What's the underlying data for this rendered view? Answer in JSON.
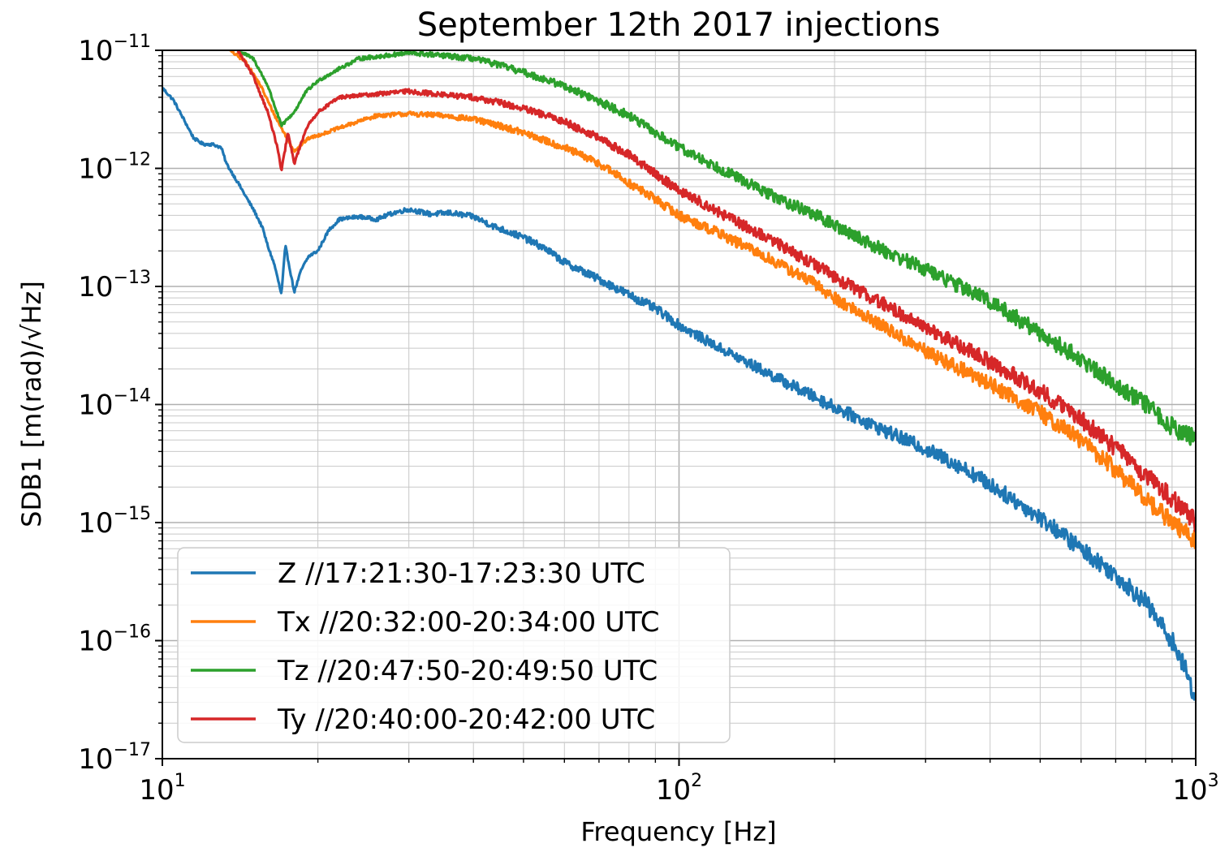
{
  "chart_data": {
    "type": "line",
    "title": "September 12th 2017 injections",
    "xlabel": "Frequency [Hz]",
    "ylabel": "SDB1 [m(rad)/√Hz]",
    "xscale": "log",
    "yscale": "log",
    "xlim": [
      10,
      1000
    ],
    "ylim": [
      1e-17,
      1e-11
    ],
    "grid": "major and minor",
    "legend_position": "lower-left",
    "x_ticks": [
      {
        "base": "10",
        "exp": "1"
      },
      {
        "base": "10",
        "exp": "2"
      },
      {
        "base": "10",
        "exp": "3"
      }
    ],
    "y_ticks": [
      {
        "base": "10",
        "exp": "−11"
      },
      {
        "base": "10",
        "exp": "−12"
      },
      {
        "base": "10",
        "exp": "−13"
      },
      {
        "base": "10",
        "exp": "−14"
      },
      {
        "base": "10",
        "exp": "−15"
      },
      {
        "base": "10",
        "exp": "−16"
      },
      {
        "base": "10",
        "exp": "−17"
      }
    ],
    "series": [
      {
        "name": "Z //17:21:30-17:23:30 UTC",
        "color": "#1f77b4",
        "points": [
          [
            10,
            4.8e-12
          ],
          [
            10.5,
            3.8e-12
          ],
          [
            11,
            2.6e-12
          ],
          [
            11.5,
            1.8e-12
          ],
          [
            12,
            1.6e-12
          ],
          [
            12.5,
            1.6e-12
          ],
          [
            13,
            1.5e-12
          ],
          [
            13.3,
            1.1e-12
          ],
          [
            14,
            7.6e-13
          ],
          [
            14.6,
            5.5e-13
          ],
          [
            15,
            4.5e-13
          ],
          [
            15.6,
            3.2e-13
          ],
          [
            16,
            2.2e-13
          ],
          [
            16.5,
            1.5e-13
          ],
          [
            17,
            8.5e-14
          ],
          [
            17.3,
            2.2e-13
          ],
          [
            17.6,
            1.5e-13
          ],
          [
            18,
            9e-14
          ],
          [
            18.6,
            1.4e-13
          ],
          [
            19.2,
            1.8e-13
          ],
          [
            20,
            2e-13
          ],
          [
            21,
            3e-13
          ],
          [
            22,
            3.7e-13
          ],
          [
            24,
            3.9e-13
          ],
          [
            26,
            3.7e-13
          ],
          [
            28,
            4.2e-13
          ],
          [
            30,
            4.5e-13
          ],
          [
            33,
            4.1e-13
          ],
          [
            36,
            4.2e-13
          ],
          [
            40,
            3.9e-13
          ],
          [
            44,
            3.2e-13
          ],
          [
            50,
            2.6e-13
          ],
          [
            55,
            2.1e-13
          ],
          [
            60,
            1.6e-13
          ],
          [
            70,
            1.15e-13
          ],
          [
            80,
            8.5e-14
          ],
          [
            90,
            6.5e-14
          ],
          [
            100,
            4.7e-14
          ],
          [
            120,
            3e-14
          ],
          [
            150,
            1.8e-14
          ],
          [
            180,
            1.2e-14
          ],
          [
            200,
            9.5e-15
          ],
          [
            250,
            6e-15
          ],
          [
            300,
            4.2e-15
          ],
          [
            350,
            3e-15
          ],
          [
            400,
            2.1e-15
          ],
          [
            450,
            1.5e-15
          ],
          [
            500,
            1.1e-15
          ],
          [
            550,
            8e-16
          ],
          [
            600,
            6e-16
          ],
          [
            700,
            3.6e-16
          ],
          [
            800,
            2.1e-16
          ],
          [
            900,
            1e-16
          ],
          [
            950,
            6e-17
          ],
          [
            1000,
            3.2e-17
          ]
        ]
      },
      {
        "name": "Tx //20:32:00-20:34:00 UTC",
        "color": "#ff7f0e",
        "points": [
          [
            13.5,
            1e-11
          ],
          [
            14.5,
            8e-12
          ],
          [
            15.5,
            5e-12
          ],
          [
            16.5,
            2.8e-12
          ],
          [
            17.2,
            2e-12
          ],
          [
            18,
            1.4e-12
          ],
          [
            18.6,
            1.6e-12
          ],
          [
            19.2,
            1.8e-12
          ],
          [
            20,
            1.9e-12
          ],
          [
            22,
            2.2e-12
          ],
          [
            24,
            2.5e-12
          ],
          [
            26,
            2.8e-12
          ],
          [
            30,
            2.9e-12
          ],
          [
            35,
            2.8e-12
          ],
          [
            40,
            2.6e-12
          ],
          [
            45,
            2.3e-12
          ],
          [
            50,
            2e-12
          ],
          [
            60,
            1.5e-12
          ],
          [
            70,
            1.1e-12
          ],
          [
            80,
            7.5e-13
          ],
          [
            90,
            5.5e-13
          ],
          [
            100,
            4e-13
          ],
          [
            120,
            2.8e-13
          ],
          [
            150,
            1.7e-13
          ],
          [
            180,
            1.1e-13
          ],
          [
            200,
            8e-14
          ],
          [
            250,
            4.5e-14
          ],
          [
            300,
            2.8e-14
          ],
          [
            400,
            1.5e-14
          ],
          [
            500,
            8.5e-15
          ],
          [
            600,
            5e-15
          ],
          [
            700,
            2.8e-15
          ],
          [
            800,
            1.6e-15
          ],
          [
            900,
            1e-15
          ],
          [
            1000,
            7e-16
          ]
        ]
      },
      {
        "name": "Tz //20:47:50-20:49:50 UTC",
        "color": "#2ca02c",
        "points": [
          [
            14,
            1e-11
          ],
          [
            15,
            8.5e-12
          ],
          [
            16,
            5e-12
          ],
          [
            17,
            2.3e-12
          ],
          [
            18,
            3e-12
          ],
          [
            19,
            4.5e-12
          ],
          [
            20,
            5.5e-12
          ],
          [
            22,
            7e-12
          ],
          [
            24,
            8.5e-12
          ],
          [
            27,
            9e-12
          ],
          [
            30,
            9.5e-12
          ],
          [
            35,
            9e-12
          ],
          [
            40,
            8.5e-12
          ],
          [
            45,
            7.5e-12
          ],
          [
            50,
            6.5e-12
          ],
          [
            60,
            5e-12
          ],
          [
            70,
            3.7e-12
          ],
          [
            80,
            2.8e-12
          ],
          [
            90,
            2e-12
          ],
          [
            100,
            1.5e-12
          ],
          [
            120,
            1e-12
          ],
          [
            150,
            6e-13
          ],
          [
            180,
            4.2e-13
          ],
          [
            200,
            3.3e-13
          ],
          [
            250,
            2e-13
          ],
          [
            300,
            1.4e-13
          ],
          [
            400,
            7.5e-14
          ],
          [
            500,
            4e-14
          ],
          [
            600,
            2.4e-14
          ],
          [
            700,
            1.5e-14
          ],
          [
            800,
            1e-14
          ],
          [
            900,
            6.5e-15
          ],
          [
            1000,
            5e-15
          ]
        ]
      },
      {
        "name": "Ty //20:40:00-20:42:00 UTC",
        "color": "#d62728",
        "points": [
          [
            14,
            1e-11
          ],
          [
            15,
            6e-12
          ],
          [
            16,
            3e-12
          ],
          [
            16.7,
            1.5e-12
          ],
          [
            17,
            9.5e-13
          ],
          [
            17.5,
            2e-12
          ],
          [
            18,
            1.1e-12
          ],
          [
            19,
            2.2e-12
          ],
          [
            20,
            3e-12
          ],
          [
            22,
            4e-12
          ],
          [
            25,
            4.2e-12
          ],
          [
            30,
            4.5e-12
          ],
          [
            35,
            4.2e-12
          ],
          [
            40,
            4e-12
          ],
          [
            45,
            3.6e-12
          ],
          [
            50,
            3.2e-12
          ],
          [
            60,
            2.5e-12
          ],
          [
            70,
            1.8e-12
          ],
          [
            80,
            1.3e-12
          ],
          [
            90,
            9e-13
          ],
          [
            100,
            6.5e-13
          ],
          [
            120,
            4.2e-13
          ],
          [
            150,
            2.5e-13
          ],
          [
            180,
            1.6e-13
          ],
          [
            200,
            1.2e-13
          ],
          [
            250,
            7e-14
          ],
          [
            300,
            4.5e-14
          ],
          [
            400,
            2.3e-14
          ],
          [
            500,
            1.3e-14
          ],
          [
            600,
            7.5e-15
          ],
          [
            700,
            4.3e-15
          ],
          [
            800,
            2.5e-15
          ],
          [
            900,
            1.6e-15
          ],
          [
            1000,
            1e-15
          ]
        ]
      }
    ]
  }
}
